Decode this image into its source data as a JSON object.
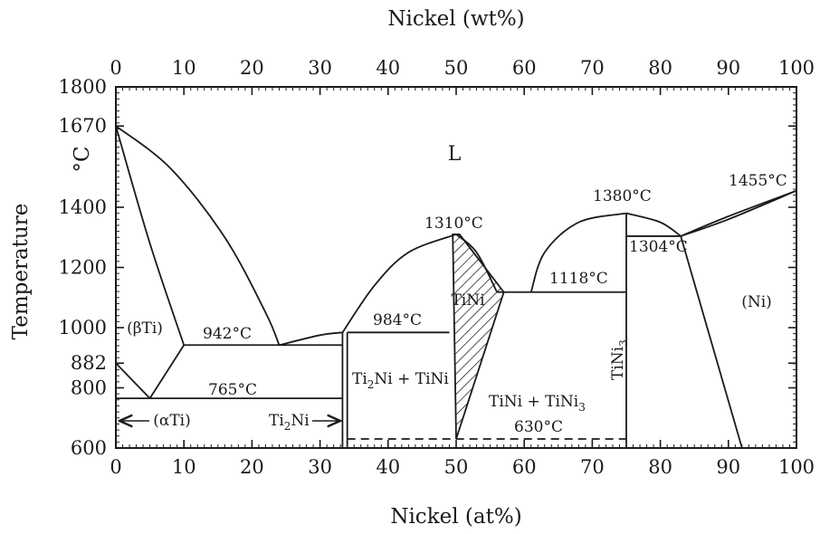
{
  "chart_data": {
    "type": "phase-diagram",
    "top_axis": {
      "title": "Nickel (wt%)",
      "ticks": [
        "0",
        "10",
        "20",
        "30",
        "40",
        "50",
        "60",
        "70",
        "80",
        "90",
        "100"
      ]
    },
    "bottom_axis": {
      "title": "Nickel (at%)",
      "ticks": [
        "0",
        "10",
        "20",
        "30",
        "40",
        "50",
        "60",
        "70",
        "80",
        "90",
        "100"
      ],
      "range": [
        0,
        100
      ]
    },
    "left_axis": {
      "title": "Temperature",
      "unit": "°C",
      "ticks": [
        "600",
        "800",
        "882",
        "1000",
        "1200",
        "1400",
        "1670",
        "1800"
      ],
      "range": [
        600,
        1800
      ]
    },
    "phase_labels": {
      "liquid": "L",
      "beta_ti": "(βTi)",
      "alpha_ti": "(αTi)",
      "ti2ni": "Ti",
      "ti2ni_sub": "2",
      "ti2ni_tail": "Ni",
      "ti2ni_tini_a": "Ti",
      "ti2ni_tini_sub": "2",
      "ti2ni_tini_b": "Ni + TiNi",
      "tini": "TiNi",
      "tini_tini3_a": "TiNi + TiNi",
      "tini_tini3_sub": "3",
      "tini3": "TiNi",
      "tini3_sub": "3",
      "ni": "(Ni)"
    },
    "temperature_labels": {
      "t942": "942°C",
      "t765": "765°C",
      "t984": "984°C",
      "t1310": "1310°C",
      "t1118": "1118°C",
      "t630": "630°C",
      "t1380": "1380°C",
      "t1304": "1304°C",
      "t1455": "1455°C"
    },
    "invariants": [
      {
        "temperature": 942,
        "x_range": [
          10,
          33.3
        ]
      },
      {
        "temperature": 765,
        "x_range": [
          0,
          33.3
        ]
      },
      {
        "temperature": 984,
        "x_range": [
          34,
          49
        ]
      },
      {
        "temperature": 1118,
        "x_range": [
          56,
          75
        ]
      },
      {
        "temperature": 630,
        "x_range": [
          34,
          75
        ],
        "style": "dashed"
      },
      {
        "temperature": 1304,
        "x_range": [
          75,
          83
        ]
      }
    ],
    "boundaries": [
      {
        "name": "liquidus-ti-side",
        "points": [
          [
            0,
            1670
          ],
          [
            8,
            1530
          ],
          [
            16,
            1300
          ],
          [
            22,
            1050
          ],
          [
            24,
            942
          ]
        ]
      },
      {
        "name": "beta-solidus",
        "points": [
          [
            0,
            1670
          ],
          [
            5,
            1280
          ],
          [
            10,
            942
          ]
        ]
      },
      {
        "name": "alpha-beta-left",
        "points": [
          [
            0,
            882
          ],
          [
            5,
            765
          ]
        ]
      },
      {
        "name": "alpha-beta-right",
        "points": [
          [
            5,
            765
          ],
          [
            10,
            942
          ]
        ]
      },
      {
        "name": "alpha-solvus",
        "points": [
          [
            0,
            765
          ],
          [
            0,
            600
          ]
        ]
      },
      {
        "name": "liquidus-ti2ni",
        "points": [
          [
            24,
            942
          ],
          [
            30,
            975
          ],
          [
            33.3,
            984
          ]
        ]
      },
      {
        "name": "liquidus-tini-left",
        "points": [
          [
            33.3,
            984
          ],
          [
            38,
            1140
          ],
          [
            43,
            1250
          ],
          [
            50,
            1310
          ]
        ]
      },
      {
        "name": "liquidus-tini-right",
        "points": [
          [
            50,
            1310
          ],
          [
            53,
            1250
          ],
          [
            56,
            1118
          ]
        ]
      },
      {
        "name": "liquidus-tini3-left",
        "points": [
          [
            61,
            1118
          ],
          [
            63,
            1250
          ],
          [
            68,
            1350
          ],
          [
            75,
            1380
          ]
        ]
      },
      {
        "name": "liquidus-tini3-right",
        "points": [
          [
            75,
            1380
          ],
          [
            80,
            1350
          ],
          [
            83,
            1304
          ]
        ]
      },
      {
        "name": "liquidus-ni",
        "points": [
          [
            83,
            1304
          ],
          [
            90,
            1370
          ],
          [
            100,
            1455
          ]
        ]
      },
      {
        "name": "solidus-ni",
        "points": [
          [
            83,
            1304
          ],
          [
            90,
            1360
          ],
          [
            100,
            1455
          ]
        ]
      },
      {
        "name": "ni-solvus",
        "points": [
          [
            83,
            1304
          ],
          [
            92,
            600
          ]
        ]
      },
      {
        "name": "tini-left",
        "points": [
          [
            49.5,
            1310
          ],
          [
            50,
            630
          ]
        ]
      },
      {
        "name": "tini-right",
        "points": [
          [
            50.5,
            1310
          ],
          [
            57,
            1118
          ],
          [
            50,
            630
          ]
        ]
      },
      {
        "name": "ti2ni-line",
        "points": [
          [
            33.3,
            984
          ],
          [
            33.3,
            600
          ]
        ]
      },
      {
        "name": "ti2ni-line-b",
        "points": [
          [
            34,
            984
          ],
          [
            34,
            600
          ]
        ]
      },
      {
        "name": "tini3-line",
        "points": [
          [
            75,
            1380
          ],
          [
            75,
            600
          ]
        ]
      }
    ]
  }
}
